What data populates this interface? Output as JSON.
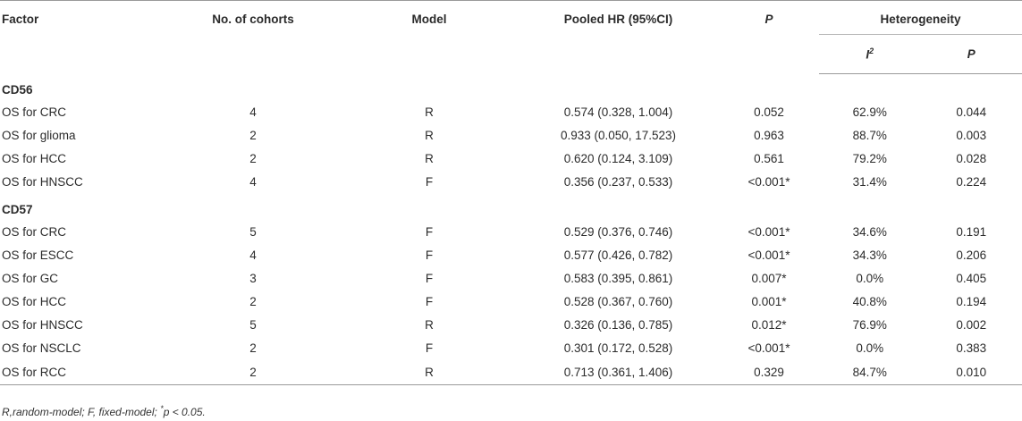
{
  "headers": {
    "factor": "Factor",
    "cohorts": "No. of cohorts",
    "model": "Model",
    "pooled_hr": "Pooled HR (95%CI)",
    "p": "P",
    "heterogeneity": "Heterogeneity",
    "i2_base": "I",
    "i2_sup": "2",
    "het_p": "P"
  },
  "groups": [
    {
      "name": "CD56",
      "rows": [
        {
          "factor": "OS for CRC",
          "cohorts": "4",
          "model": "R",
          "hr": "0.574 (0.328, 1.004)",
          "p": "0.052",
          "i2": "62.9%",
          "het_p": "0.044"
        },
        {
          "factor": "OS for glioma",
          "cohorts": "2",
          "model": "R",
          "hr": "0.933 (0.050, 17.523)",
          "p": "0.963",
          "i2": "88.7%",
          "het_p": "0.003"
        },
        {
          "factor": "OS for HCC",
          "cohorts": "2",
          "model": "R",
          "hr": "0.620 (0.124, 3.109)",
          "p": "0.561",
          "i2": "79.2%",
          "het_p": "0.028"
        },
        {
          "factor": "OS for HNSCC",
          "cohorts": "4",
          "model": "F",
          "hr": "0.356 (0.237, 0.533)",
          "p": "<0.001*",
          "i2": "31.4%",
          "het_p": "0.224"
        }
      ]
    },
    {
      "name": "CD57",
      "rows": [
        {
          "factor": "OS for CRC",
          "cohorts": "5",
          "model": "F",
          "hr": "0.529 (0.376, 0.746)",
          "p": "<0.001*",
          "i2": "34.6%",
          "het_p": "0.191"
        },
        {
          "factor": "OS for ESCC",
          "cohorts": "4",
          "model": "F",
          "hr": "0.577 (0.426, 0.782)",
          "p": "<0.001*",
          "i2": "34.3%",
          "het_p": "0.206"
        },
        {
          "factor": "OS for GC",
          "cohorts": "3",
          "model": "F",
          "hr": "0.583 (0.395, 0.861)",
          "p": "0.007*",
          "i2": "0.0%",
          "het_p": "0.405"
        },
        {
          "factor": "OS for HCC",
          "cohorts": "2",
          "model": "F",
          "hr": "0.528 (0.367, 0.760)",
          "p": "0.001*",
          "i2": "40.8%",
          "het_p": "0.194"
        },
        {
          "factor": "OS for HNSCC",
          "cohorts": "5",
          "model": "R",
          "hr": "0.326 (0.136, 0.785)",
          "p": "0.012*",
          "i2": "76.9%",
          "het_p": "0.002"
        },
        {
          "factor": "OS for NSCLC",
          "cohorts": "2",
          "model": "F",
          "hr": "0.301 (0.172, 0.528)",
          "p": "<0.001*",
          "i2": "0.0%",
          "het_p": "0.383"
        },
        {
          "factor": "OS for RCC",
          "cohorts": "2",
          "model": "R",
          "hr": "0.713 (0.361, 1.406)",
          "p": "0.329",
          "i2": "84.7%",
          "het_p": "0.010"
        }
      ]
    }
  ],
  "footnote": {
    "text": "R,random-model; F, fixed-model; ",
    "sup": "*",
    "tail": "p < 0.05."
  }
}
